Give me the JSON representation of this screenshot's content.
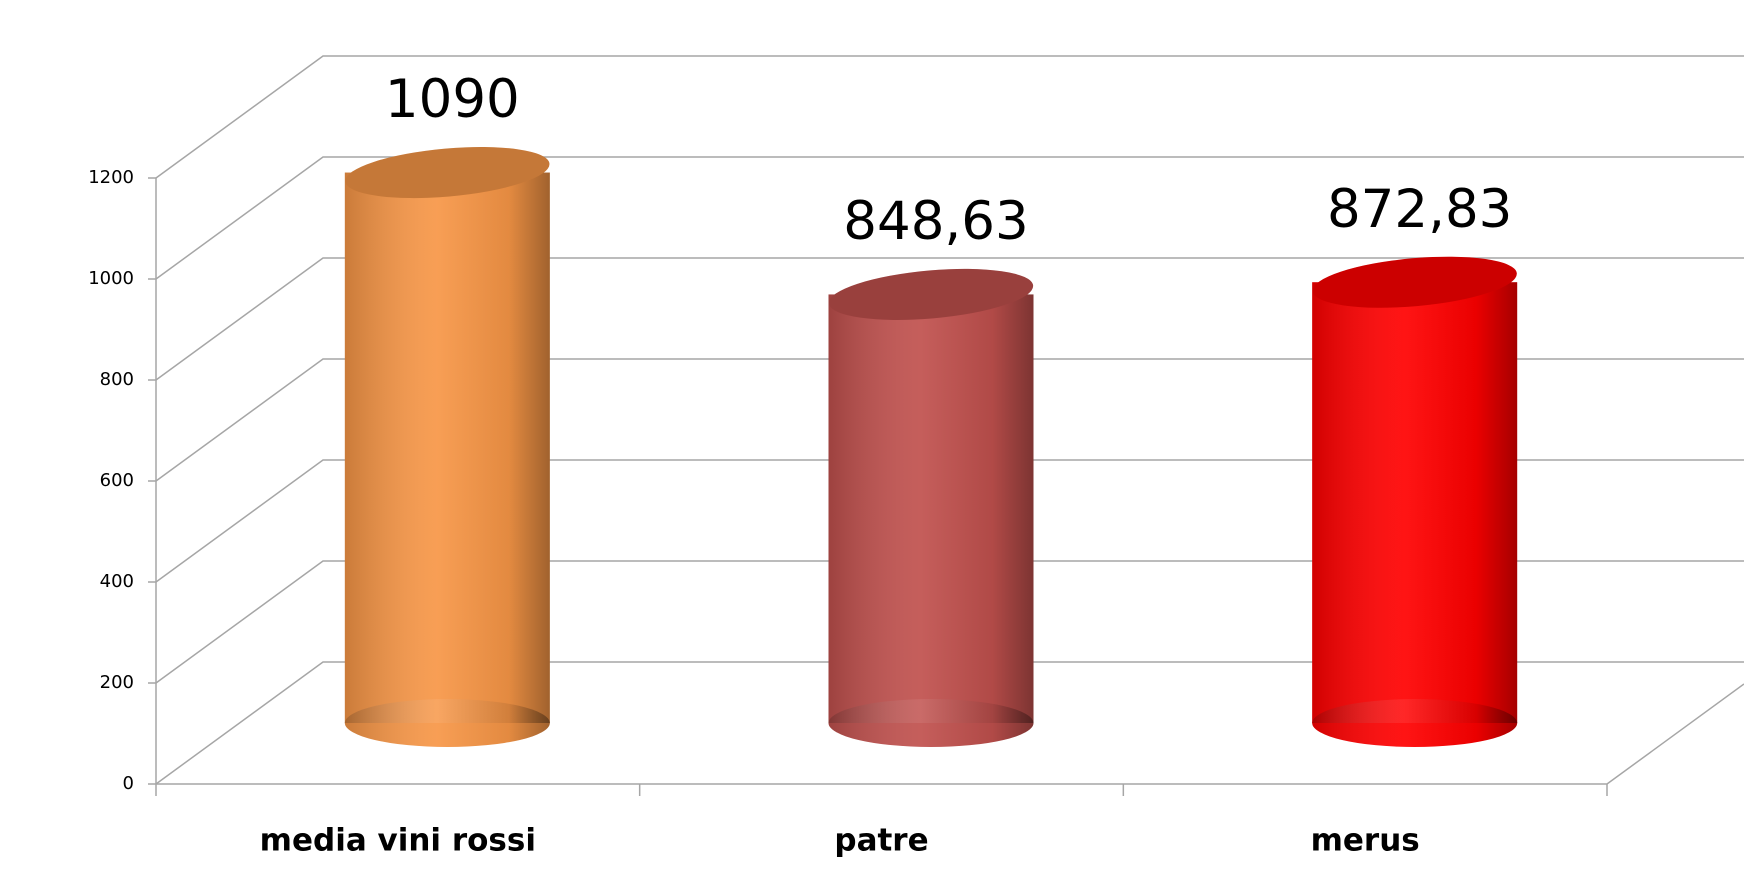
{
  "chart_data": {
    "type": "bar",
    "categories": [
      "media vini rossi",
      "patre",
      "merus"
    ],
    "values": [
      1090,
      848.63,
      872.83
    ],
    "value_labels": [
      "1090",
      "848,63",
      "872,83"
    ],
    "colors": [
      "#f79646",
      "#c0504d",
      "#ff0000"
    ],
    "ylim": [
      0,
      1200
    ],
    "yticks": [
      0,
      200,
      400,
      600,
      800,
      1000,
      1200
    ],
    "grid": true
  }
}
